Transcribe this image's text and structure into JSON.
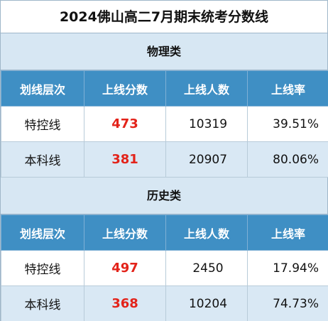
{
  "title": "2024佛山高二7月期末统考分数线",
  "sections": [
    {
      "name": "物理类",
      "headers": [
        "划线层次",
        "上线分数",
        "上线人数",
        "上线率"
      ],
      "rows": [
        {
          "level": "特控线",
          "score": "473",
          "count": "10319",
          "rate": "39.51%"
        },
        {
          "level": "本科线",
          "score": "381",
          "count": "20907",
          "rate": "80.06%"
        }
      ]
    },
    {
      "name": "历史类",
      "headers": [
        "划线层次",
        "上线分数",
        "上线人数",
        "上线率"
      ],
      "rows": [
        {
          "level": "特控线",
          "score": "497",
          "count": "2450",
          "rate": "17.94%"
        },
        {
          "level": "本科线",
          "score": "368",
          "count": "10204",
          "rate": "74.73%"
        }
      ]
    }
  ]
}
